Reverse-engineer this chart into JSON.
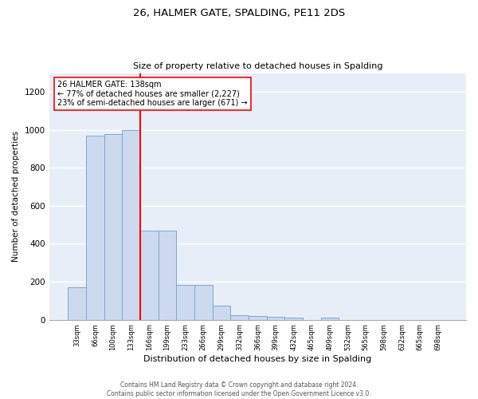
{
  "title1": "26, HALMER GATE, SPALDING, PE11 2DS",
  "title2": "Size of property relative to detached houses in Spalding",
  "xlabel": "Distribution of detached houses by size in Spalding",
  "ylabel": "Number of detached properties",
  "bin_labels": [
    "33sqm",
    "66sqm",
    "100sqm",
    "133sqm",
    "166sqm",
    "199sqm",
    "233sqm",
    "266sqm",
    "299sqm",
    "332sqm",
    "366sqm",
    "399sqm",
    "432sqm",
    "465sqm",
    "499sqm",
    "532sqm",
    "565sqm",
    "598sqm",
    "632sqm",
    "665sqm",
    "698sqm"
  ],
  "bar_heights": [
    170,
    970,
    980,
    1000,
    470,
    470,
    185,
    185,
    75,
    25,
    20,
    15,
    10,
    0,
    10,
    0,
    0,
    0,
    0,
    0,
    0
  ],
  "bar_color": "#ccd9ee",
  "bar_edge_color": "#7aaad4",
  "red_line_x": 3.5,
  "annotation_line1": "26 HALMER GATE: 138sqm",
  "annotation_line2": "← 77% of detached houses are smaller (2,227)",
  "annotation_line3": "23% of semi-detached houses are larger (671) →",
  "ylim": [
    0,
    1300
  ],
  "yticks": [
    0,
    200,
    400,
    600,
    800,
    1000,
    1200
  ],
  "footer1": "Contains HM Land Registry data © Crown copyright and database right 2024.",
  "footer2": "Contains public sector information licensed under the Open Government Licence v3.0.",
  "bg_color": "#e8eef8"
}
